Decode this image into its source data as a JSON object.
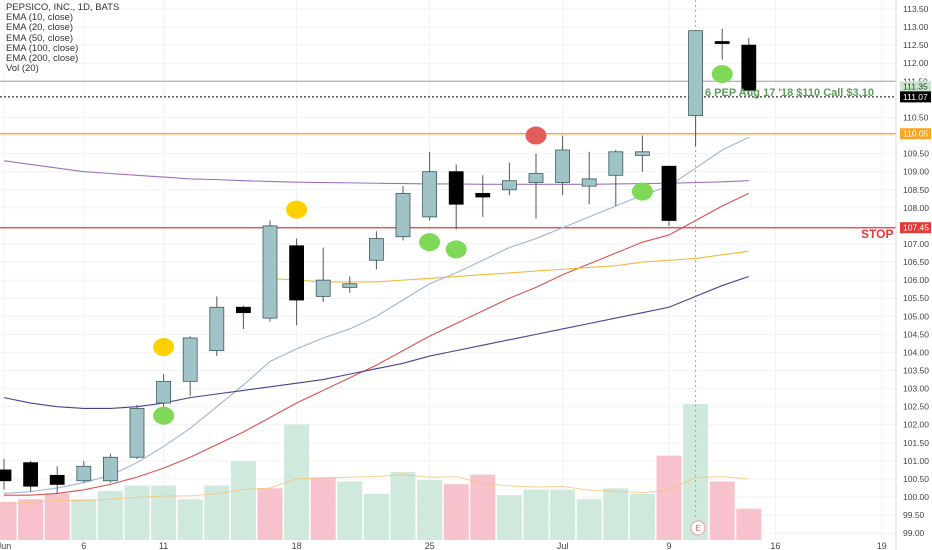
{
  "header": {
    "symbol_line": "PEPSICO, INC., 1D, BATS",
    "indicators": [
      "EMA (10, close)",
      "EMA (20, close)",
      "EMA (50, close)",
      "EMA (100, close)",
      "EMA (200, close)",
      "Vol (20)"
    ]
  },
  "annotations": {
    "option_text": "6 PEP Aug 17 '18 $110 Call $3.10",
    "stop_label": "STOP",
    "earnings_marker": "E"
  },
  "colors": {
    "up_body": "#9fc3c6",
    "down_body": "#000000",
    "wick": "#555555",
    "vol_up": "#cfe9dc",
    "vol_down": "#f7c2cb",
    "ema10": "#9fb4d8",
    "ema20": "#d9534f",
    "ema50": "#f5b841",
    "ema100": "#4a3f8f",
    "ema200": "#a070c0",
    "orange_line": "#f5a623",
    "stop_line": "#e53935",
    "green_dot": "#7ed957",
    "yellow_dot": "#ffd000",
    "red_dot": "#e35d5b"
  },
  "chart_data": {
    "type": "candlestick",
    "title": "PEPSICO, INC., 1D, BATS",
    "y_range": [
      98.95,
      113.5
    ],
    "y_ticks": [
      "113.50",
      "113.00",
      "112.50",
      "112.00",
      "111.50",
      "111.00",
      "110.50",
      "110.00",
      "109.50",
      "109.00",
      "108.50",
      "108.00",
      "107.50",
      "107.00",
      "106.50",
      "106.00",
      "105.50",
      "105.00",
      "104.50",
      "104.00",
      "103.50",
      "103.00",
      "102.50",
      "102.00",
      "101.50",
      "101.00",
      "100.50",
      "100.00",
      "99.50",
      "99.00"
    ],
    "x_labels": [
      {
        "index": 0,
        "label": "Jun"
      },
      {
        "index": 3,
        "label": "6"
      },
      {
        "index": 6,
        "label": "11"
      },
      {
        "index": 11,
        "label": "18"
      },
      {
        "index": 16,
        "label": "25"
      },
      {
        "index": 21,
        "label": "Jul"
      },
      {
        "index": 25,
        "label": "9"
      },
      {
        "index": 29,
        "label": "16"
      },
      {
        "index": 33,
        "label": "19"
      }
    ],
    "candles": [
      {
        "o": 100.75,
        "h": 101.05,
        "l": 100.2,
        "c": 100.45
      },
      {
        "o": 100.95,
        "h": 101.0,
        "l": 100.15,
        "c": 100.3
      },
      {
        "o": 100.6,
        "h": 100.85,
        "l": 100.1,
        "c": 100.35
      },
      {
        "o": 100.45,
        "h": 101.0,
        "l": 100.4,
        "c": 100.85
      },
      {
        "o": 100.45,
        "h": 101.2,
        "l": 100.4,
        "c": 101.1
      },
      {
        "o": 101.1,
        "h": 102.55,
        "l": 101.05,
        "c": 102.45
      },
      {
        "o": 102.6,
        "h": 103.4,
        "l": 102.3,
        "c": 103.2
      },
      {
        "o": 103.2,
        "h": 104.45,
        "l": 102.8,
        "c": 104.4
      },
      {
        "o": 104.05,
        "h": 105.55,
        "l": 103.9,
        "c": 105.25
      },
      {
        "o": 105.25,
        "h": 105.3,
        "l": 104.65,
        "c": 105.1
      },
      {
        "o": 104.95,
        "h": 107.65,
        "l": 104.85,
        "c": 107.5
      },
      {
        "o": 106.95,
        "h": 107.15,
        "l": 104.75,
        "c": 105.45
      },
      {
        "o": 105.55,
        "h": 106.9,
        "l": 105.4,
        "c": 106.0
      },
      {
        "o": 105.8,
        "h": 106.1,
        "l": 105.65,
        "c": 105.9
      },
      {
        "o": 106.55,
        "h": 107.35,
        "l": 106.3,
        "c": 107.15
      },
      {
        "o": 107.2,
        "h": 108.6,
        "l": 107.1,
        "c": 108.4
      },
      {
        "o": 107.75,
        "h": 109.55,
        "l": 107.65,
        "c": 109.0
      },
      {
        "o": 109.0,
        "h": 109.2,
        "l": 107.4,
        "c": 108.1
      },
      {
        "o": 108.4,
        "h": 108.9,
        "l": 107.75,
        "c": 108.3
      },
      {
        "o": 108.5,
        "h": 109.25,
        "l": 108.35,
        "c": 108.75
      },
      {
        "o": 108.7,
        "h": 109.5,
        "l": 107.7,
        "c": 108.95
      },
      {
        "o": 108.7,
        "h": 110.0,
        "l": 108.35,
        "c": 109.6
      },
      {
        "o": 108.6,
        "h": 109.55,
        "l": 108.1,
        "c": 108.8
      },
      {
        "o": 108.9,
        "h": 109.6,
        "l": 108.05,
        "c": 109.55
      },
      {
        "o": 109.45,
        "h": 110.0,
        "l": 109.0,
        "c": 109.55
      },
      {
        "o": 109.15,
        "h": 109.15,
        "l": 107.5,
        "c": 107.65
      },
      {
        "o": 110.55,
        "h": 112.9,
        "l": 109.7,
        "c": 112.9
      },
      {
        "o": 112.6,
        "h": 112.95,
        "l": 112.1,
        "c": 112.55
      },
      {
        "o": 112.5,
        "h": 112.7,
        "l": 111.1,
        "c": 111.25
      }
    ],
    "volume": [
      {
        "v": 0.28,
        "up": false
      },
      {
        "v": 0.3,
        "up": false
      },
      {
        "v": 0.34,
        "up": false
      },
      {
        "v": 0.3,
        "up": true
      },
      {
        "v": 0.36,
        "up": true
      },
      {
        "v": 0.4,
        "up": true
      },
      {
        "v": 0.4,
        "up": true
      },
      {
        "v": 0.3,
        "up": true
      },
      {
        "v": 0.4,
        "up": true
      },
      {
        "v": 0.58,
        "up": true
      },
      {
        "v": 0.38,
        "up": false
      },
      {
        "v": 0.85,
        "up": true
      },
      {
        "v": 0.46,
        "up": false
      },
      {
        "v": 0.43,
        "up": true
      },
      {
        "v": 0.34,
        "up": true
      },
      {
        "v": 0.5,
        "up": true
      },
      {
        "v": 0.44,
        "up": true
      },
      {
        "v": 0.41,
        "up": false
      },
      {
        "v": 0.48,
        "up": false
      },
      {
        "v": 0.33,
        "up": true
      },
      {
        "v": 0.37,
        "up": true
      },
      {
        "v": 0.37,
        "up": true
      },
      {
        "v": 0.3,
        "up": true
      },
      {
        "v": 0.38,
        "up": true
      },
      {
        "v": 0.34,
        "up": true
      },
      {
        "v": 0.62,
        "up": false
      },
      {
        "v": 1.0,
        "up": true
      },
      {
        "v": 0.43,
        "up": false
      },
      {
        "v": 0.23,
        "up": false
      }
    ],
    "emas": {
      "ema10": [
        100.1,
        100.15,
        100.25,
        100.4,
        100.6,
        100.95,
        101.4,
        101.9,
        102.5,
        103.1,
        103.75,
        104.1,
        104.4,
        104.65,
        105.0,
        105.45,
        105.9,
        106.2,
        106.55,
        106.9,
        107.15,
        107.45,
        107.75,
        108.05,
        108.35,
        108.6,
        109.1,
        109.6,
        109.95
      ],
      "ema20": [
        100.05,
        100.05,
        100.1,
        100.2,
        100.35,
        100.55,
        100.8,
        101.1,
        101.45,
        101.8,
        102.2,
        102.6,
        102.95,
        103.3,
        103.65,
        104.05,
        104.45,
        104.8,
        105.15,
        105.5,
        105.8,
        106.15,
        106.45,
        106.75,
        107.05,
        107.25,
        107.65,
        108.05,
        108.4
      ],
      "ema50": [
        null,
        null,
        null,
        null,
        null,
        null,
        null,
        null,
        null,
        null,
        106.05,
        106.0,
        105.95,
        105.95,
        105.95,
        106.0,
        106.05,
        106.1,
        106.15,
        106.2,
        106.25,
        106.3,
        106.35,
        106.4,
        106.5,
        106.55,
        106.6,
        106.7,
        106.8
      ],
      "ema100": [
        102.75,
        102.6,
        102.5,
        102.45,
        102.45,
        102.5,
        102.6,
        102.75,
        102.85,
        102.95,
        103.05,
        103.15,
        103.25,
        103.4,
        103.55,
        103.7,
        103.9,
        104.05,
        104.2,
        104.35,
        104.5,
        104.65,
        104.8,
        104.95,
        105.1,
        105.25,
        105.55,
        105.85,
        106.1
      ],
      "ema200": [
        109.3,
        109.2,
        109.1,
        109.0,
        108.95,
        108.9,
        108.85,
        108.8,
        108.78,
        108.75,
        108.73,
        108.71,
        108.7,
        108.69,
        108.68,
        108.67,
        108.66,
        108.66,
        108.65,
        108.65,
        108.65,
        108.65,
        108.65,
        108.66,
        108.67,
        108.68,
        108.7,
        108.72,
        108.75
      ]
    },
    "horizontal_lines": {
      "upper_gray": 111.5,
      "dotted_black": 111.07,
      "orange": 110.05,
      "stop": 107.45
    },
    "price_labels": [
      {
        "value": 111.35,
        "text": "111.35",
        "bg": "#c8e6c9",
        "fg": "#333333"
      },
      {
        "value": 111.07,
        "text": "111.07",
        "bg": "#000000",
        "fg": "#ffffff"
      },
      {
        "value": 110.05,
        "text": "110.05",
        "bg": "#f5a623",
        "fg": "#ffffff"
      },
      {
        "value": 107.45,
        "text": "107.45",
        "bg": "#e53935",
        "fg": "#ffffff"
      }
    ],
    "dots": [
      {
        "index": 6,
        "price": 102.25,
        "color": "green"
      },
      {
        "index": 6,
        "price": 104.15,
        "color": "yellow"
      },
      {
        "index": 11,
        "price": 107.95,
        "color": "yellow"
      },
      {
        "index": 16,
        "price": 107.05,
        "color": "green"
      },
      {
        "index": 17,
        "price": 106.85,
        "color": "green"
      },
      {
        "index": 20,
        "price": 110.0,
        "color": "red"
      },
      {
        "index": 24,
        "price": 108.45,
        "color": "green"
      },
      {
        "index": 27,
        "price": 111.7,
        "color": "green"
      }
    ],
    "event_marker_index": 26
  }
}
